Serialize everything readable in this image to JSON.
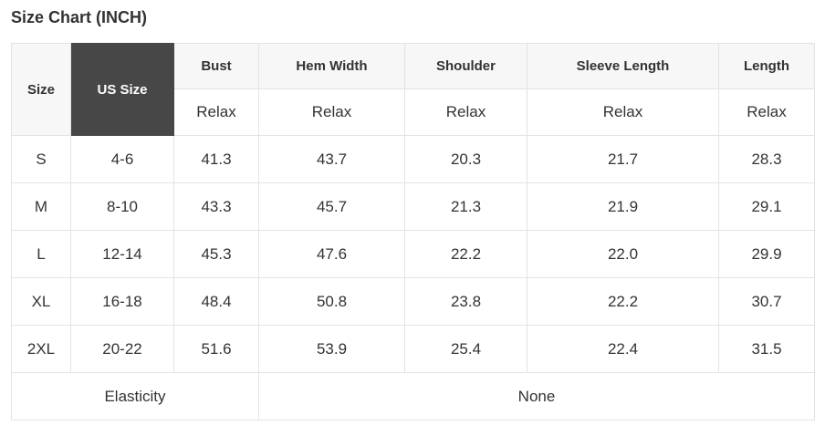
{
  "page": {
    "title": "Size Chart (INCH)"
  },
  "table": {
    "unit": "INCH",
    "columns": [
      {
        "key": "size",
        "label": "Size",
        "fit": null
      },
      {
        "key": "us_size",
        "label": "US Size",
        "fit": null
      },
      {
        "key": "bust",
        "label": "Bust",
        "fit": "Relax"
      },
      {
        "key": "hem_width",
        "label": "Hem Width",
        "fit": "Relax"
      },
      {
        "key": "shoulder",
        "label": "Shoulder",
        "fit": "Relax"
      },
      {
        "key": "sleeve_length",
        "label": "Sleeve Length",
        "fit": "Relax"
      },
      {
        "key": "length",
        "label": "Length",
        "fit": "Relax"
      }
    ],
    "rows": [
      {
        "size": "S",
        "us_size": "4-6",
        "bust": "41.3",
        "hem_width": "43.7",
        "shoulder": "20.3",
        "sleeve_length": "21.7",
        "length": "28.3"
      },
      {
        "size": "M",
        "us_size": "8-10",
        "bust": "43.3",
        "hem_width": "45.7",
        "shoulder": "21.3",
        "sleeve_length": "21.9",
        "length": "29.1"
      },
      {
        "size": "L",
        "us_size": "12-14",
        "bust": "45.3",
        "hem_width": "47.6",
        "shoulder": "22.2",
        "sleeve_length": "22.0",
        "length": "29.9"
      },
      {
        "size": "XL",
        "us_size": "16-18",
        "bust": "48.4",
        "hem_width": "50.8",
        "shoulder": "23.8",
        "sleeve_length": "22.2",
        "length": "30.7"
      },
      {
        "size": "2XL",
        "us_size": "20-22",
        "bust": "51.6",
        "hem_width": "53.9",
        "shoulder": "25.4",
        "sleeve_length": "22.4",
        "length": "31.5"
      }
    ],
    "footer": {
      "label": "Elasticity",
      "value": "None"
    }
  },
  "colors": {
    "highlight_bg": "#474747",
    "highlight_text": "#ffffff",
    "header_bg": "#f7f7f7",
    "border": "#e3e3e3",
    "text": "#333333"
  }
}
